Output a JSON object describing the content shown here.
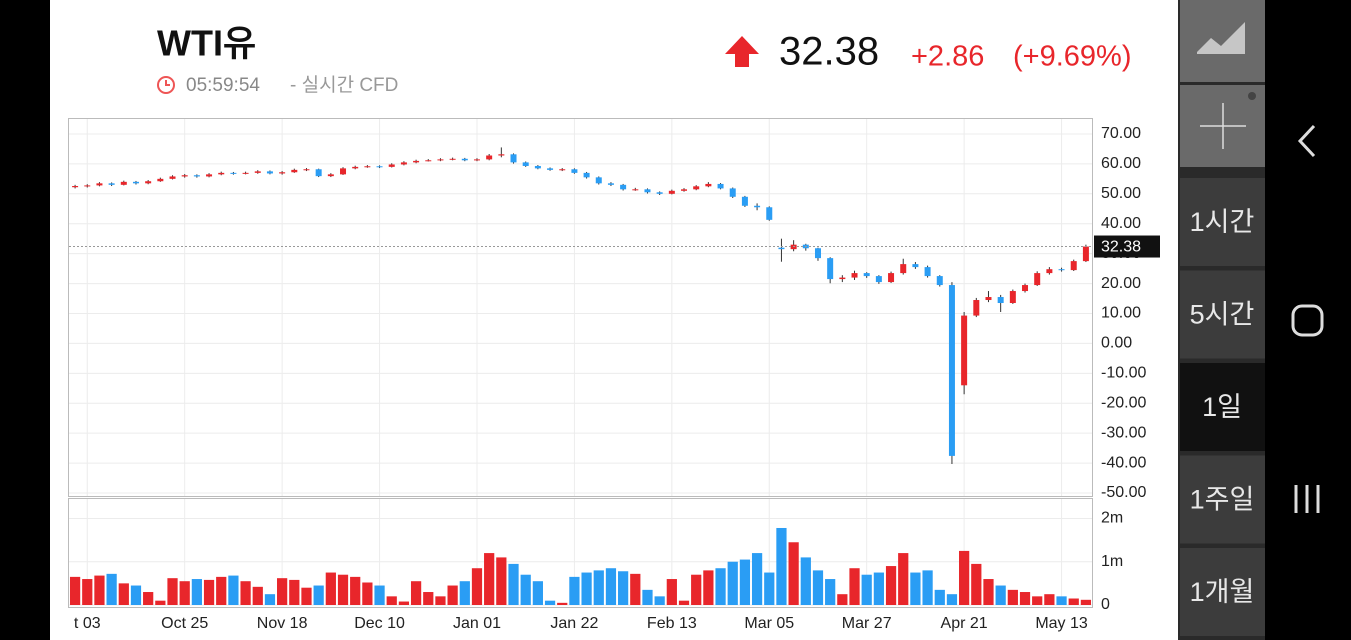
{
  "header": {
    "title": "WTI유",
    "time": "05:59:54",
    "source": "- 실시간 CFD",
    "price": "32.38",
    "change": "+2.86",
    "change_pct": "(+9.69%)"
  },
  "sidebar": {
    "tabs": [
      "1시간",
      "5시간",
      "1일",
      "1주일",
      "1개월"
    ],
    "selected": 2
  },
  "chart_data": {
    "type": "candlestick",
    "up_color": "#e8262b",
    "down_color": "#2a9df4",
    "grid": true,
    "categories": [
      null,
      "t 03",
      null,
      null,
      null,
      null,
      null,
      null,
      null,
      "Oct 25",
      null,
      null,
      null,
      null,
      null,
      null,
      null,
      "Nov 18",
      null,
      null,
      null,
      null,
      null,
      null,
      null,
      "Dec 10",
      null,
      null,
      null,
      null,
      null,
      null,
      null,
      "Jan 01",
      null,
      null,
      null,
      null,
      null,
      null,
      null,
      "Jan 22",
      null,
      null,
      null,
      null,
      null,
      null,
      null,
      "Feb 13",
      null,
      null,
      null,
      null,
      null,
      null,
      null,
      "Mar 05",
      null,
      null,
      null,
      null,
      null,
      null,
      null,
      "Mar 27",
      null,
      null,
      null,
      null,
      null,
      null,
      null,
      "Apr 21",
      null,
      null,
      null,
      null,
      null,
      null,
      null,
      "May 13",
      null,
      null
    ],
    "candles": [
      [
        52.2,
        53.0,
        51.8,
        52.6
      ],
      [
        52.6,
        53.2,
        52.1,
        52.8
      ],
      [
        52.8,
        53.9,
        52.5,
        53.5
      ],
      [
        53.5,
        53.8,
        52.6,
        53.0
      ],
      [
        53.0,
        54.4,
        52.8,
        54.0
      ],
      [
        54.0,
        54.3,
        53.1,
        53.5
      ],
      [
        53.5,
        54.6,
        53.2,
        54.2
      ],
      [
        54.2,
        55.4,
        54.0,
        55.0
      ],
      [
        55.0,
        56.2,
        54.8,
        55.8
      ],
      [
        55.8,
        56.6,
        55.4,
        56.2
      ],
      [
        56.2,
        56.5,
        55.4,
        55.8
      ],
      [
        55.8,
        56.9,
        55.5,
        56.5
      ],
      [
        56.5,
        57.4,
        56.2,
        57.0
      ],
      [
        57.0,
        57.3,
        56.4,
        56.8
      ],
      [
        56.8,
        57.4,
        56.5,
        57.0
      ],
      [
        57.0,
        57.9,
        56.7,
        57.5
      ],
      [
        57.5,
        57.8,
        56.5,
        56.8
      ],
      [
        56.8,
        57.6,
        56.4,
        57.2
      ],
      [
        57.2,
        58.4,
        57.0,
        58.0
      ],
      [
        58.0,
        58.6,
        57.6,
        58.2
      ],
      [
        58.2,
        58.4,
        55.6,
        55.9
      ],
      [
        55.9,
        56.9,
        55.6,
        56.5
      ],
      [
        56.5,
        58.9,
        56.3,
        58.5
      ],
      [
        58.5,
        59.4,
        58.2,
        59.0
      ],
      [
        59.0,
        59.6,
        58.7,
        59.2
      ],
      [
        59.2,
        59.5,
        58.6,
        59.0
      ],
      [
        59.0,
        60.2,
        58.8,
        59.8
      ],
      [
        59.8,
        60.9,
        59.5,
        60.5
      ],
      [
        60.5,
        61.4,
        60.2,
        61.0
      ],
      [
        61.0,
        61.6,
        60.8,
        61.2
      ],
      [
        61.2,
        61.9,
        60.9,
        61.5
      ],
      [
        61.5,
        62.1,
        61.2,
        61.7
      ],
      [
        61.7,
        62.0,
        60.9,
        61.2
      ],
      [
        61.2,
        61.9,
        60.9,
        61.5
      ],
      [
        61.5,
        63.3,
        61.2,
        62.8
      ],
      [
        62.8,
        65.5,
        62.2,
        63.2
      ],
      [
        63.2,
        63.5,
        60.1,
        60.5
      ],
      [
        60.5,
        60.8,
        59.0,
        59.3
      ],
      [
        59.3,
        59.6,
        58.2,
        58.5
      ],
      [
        58.5,
        58.8,
        57.7,
        58.0
      ],
      [
        58.0,
        58.6,
        57.6,
        58.2
      ],
      [
        58.2,
        58.5,
        56.7,
        57.0
      ],
      [
        57.0,
        57.3,
        55.1,
        55.5
      ],
      [
        55.5,
        55.8,
        53.1,
        53.5
      ],
      [
        53.5,
        53.9,
        52.6,
        53.0
      ],
      [
        53.0,
        53.3,
        51.1,
        51.5
      ],
      [
        51.5,
        52.0,
        51.0,
        51.5
      ],
      [
        51.5,
        51.8,
        50.1,
        50.5
      ],
      [
        50.5,
        50.8,
        49.6,
        50.0
      ],
      [
        50.0,
        51.4,
        49.8,
        51.0
      ],
      [
        51.0,
        51.9,
        50.7,
        51.5
      ],
      [
        51.5,
        52.9,
        51.2,
        52.5
      ],
      [
        52.5,
        53.9,
        52.2,
        53.3
      ],
      [
        53.3,
        53.6,
        51.5,
        51.8
      ],
      [
        51.8,
        52.1,
        48.6,
        49.0
      ],
      [
        49.0,
        49.3,
        45.6,
        46.0
      ],
      [
        46.0,
        46.8,
        44.5,
        45.5
      ],
      [
        45.5,
        45.8,
        41.0,
        41.3
      ],
      [
        32.0,
        35.0,
        27.3,
        31.5
      ],
      [
        31.5,
        34.5,
        30.8,
        33.0
      ],
      [
        33.0,
        33.3,
        31.0,
        31.8
      ],
      [
        31.8,
        32.0,
        27.6,
        28.5
      ],
      [
        28.5,
        28.8,
        20.1,
        21.5
      ],
      [
        21.5,
        22.8,
        20.5,
        22.0
      ],
      [
        22.0,
        24.3,
        21.2,
        23.5
      ],
      [
        23.5,
        23.8,
        21.9,
        22.5
      ],
      [
        22.5,
        22.8,
        19.9,
        20.5
      ],
      [
        20.5,
        24.0,
        20.2,
        23.5
      ],
      [
        23.5,
        28.3,
        23.0,
        26.5
      ],
      [
        26.5,
        27.2,
        24.9,
        25.5
      ],
      [
        25.5,
        26.0,
        22.0,
        22.5
      ],
      [
        22.5,
        22.8,
        19.0,
        19.5
      ],
      [
        19.5,
        20.5,
        -40.3,
        -37.6
      ],
      [
        -14.0,
        10.5,
        -17.0,
        9.3
      ],
      [
        9.3,
        15.2,
        8.8,
        14.5
      ],
      [
        14.5,
        17.5,
        13.8,
        15.5
      ],
      [
        15.5,
        16.2,
        10.5,
        13.5
      ],
      [
        13.5,
        18.0,
        13.2,
        17.5
      ],
      [
        17.5,
        20.0,
        17.0,
        19.5
      ],
      [
        19.5,
        24.1,
        19.2,
        23.5
      ],
      [
        23.5,
        25.5,
        23.0,
        24.8
      ],
      [
        24.8,
        25.3,
        24.0,
        24.5
      ],
      [
        24.5,
        28.0,
        24.2,
        27.5
      ],
      [
        27.5,
        33.0,
        27.2,
        32.38
      ]
    ],
    "ylim": [
      -51,
      75
    ],
    "yticks": [
      {
        "value": 70,
        "label": "70.00"
      },
      {
        "value": 60,
        "label": "60.00"
      },
      {
        "value": 50,
        "label": "50.00"
      },
      {
        "value": 40,
        "label": "40.00"
      },
      {
        "value": 30,
        "label": "30.00"
      },
      {
        "value": 20,
        "label": "20.00"
      },
      {
        "value": 10,
        "label": "10.00"
      },
      {
        "value": 0,
        "label": "0.00"
      },
      {
        "value": -10,
        "label": "-10.00"
      },
      {
        "value": -20,
        "label": "-20.00"
      },
      {
        "value": -30,
        "label": "-30.00"
      },
      {
        "value": -40,
        "label": "-40.00"
      },
      {
        "value": -50,
        "label": "-50.00"
      }
    ],
    "volume": [
      0.65,
      0.6,
      0.68,
      0.72,
      0.5,
      0.45,
      0.3,
      0.1,
      0.62,
      0.55,
      0.6,
      0.58,
      0.65,
      0.68,
      0.55,
      0.42,
      0.25,
      0.62,
      0.58,
      0.4,
      0.45,
      0.75,
      0.7,
      0.65,
      0.52,
      0.45,
      0.2,
      0.08,
      0.55,
      0.3,
      0.2,
      0.45,
      0.55,
      0.85,
      1.2,
      1.1,
      0.95,
      0.7,
      0.55,
      0.1,
      0.05,
      0.65,
      0.75,
      0.8,
      0.85,
      0.78,
      0.72,
      0.35,
      0.2,
      0.6,
      0.1,
      0.7,
      0.8,
      0.85,
      1.0,
      1.05,
      1.2,
      0.75,
      1.78,
      1.45,
      1.1,
      0.8,
      0.6,
      0.25,
      0.85,
      0.7,
      0.75,
      0.9,
      1.2,
      0.75,
      0.8,
      0.35,
      0.25,
      1.25,
      0.95,
      0.6,
      0.45,
      0.35,
      0.3,
      0.2,
      0.25,
      0.2,
      0.15,
      0.12
    ],
    "vlim": [
      0,
      2.45
    ],
    "vticks": [
      {
        "value": 2,
        "label": "2m"
      },
      {
        "value": 1,
        "label": "1m"
      },
      0
    ]
  }
}
